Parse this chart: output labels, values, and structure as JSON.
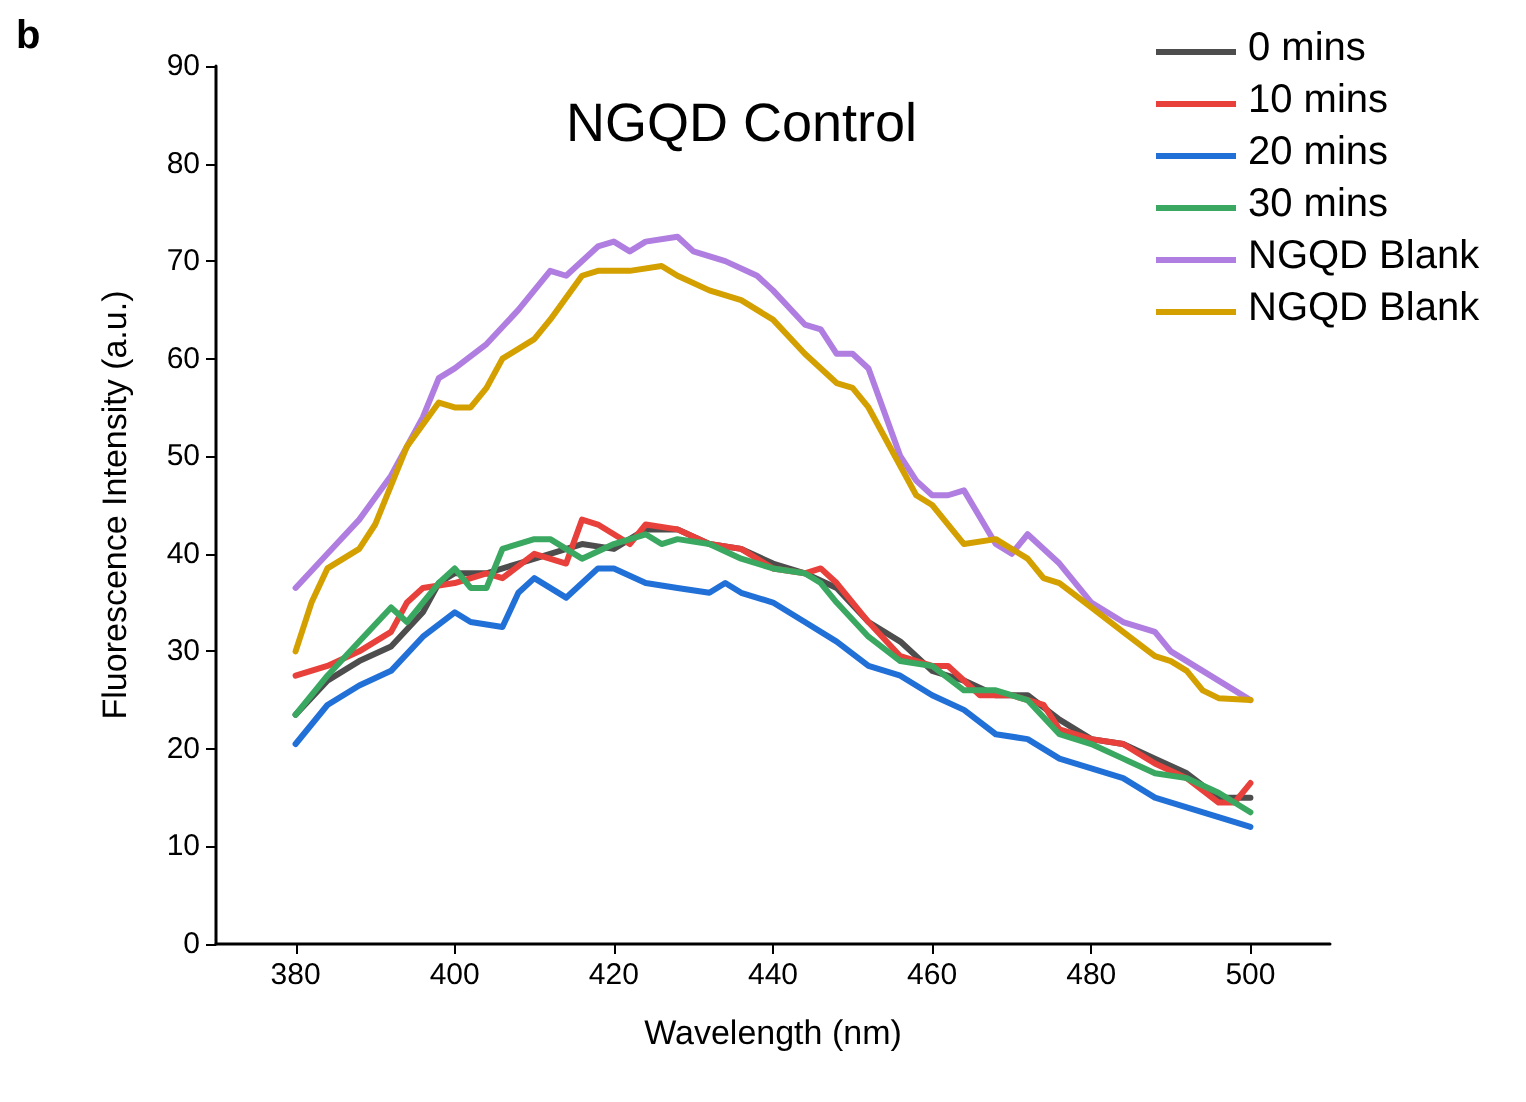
{
  "chart_data": {
    "type": "line",
    "title": "NGQD Control",
    "xlabel": "Wavelength (nm)",
    "ylabel": "Fluorescence Intensity (a.u.)",
    "annotations": [
      "b"
    ],
    "xlim": [
      370,
      510
    ],
    "xticks": [
      380,
      400,
      420,
      440,
      460,
      480,
      500
    ],
    "ylim": [
      0,
      90
    ],
    "yticks": [
      0,
      10,
      20,
      30,
      40,
      50,
      60,
      70,
      80,
      90
    ],
    "grid": false,
    "legend": "top right",
    "marker": "none",
    "line_style": "solid",
    "series": [
      {
        "name": "0 mins",
        "color": "#4d4d4d",
        "x": [
          380,
          384,
          388,
          392,
          396,
          398,
          400,
          404,
          408,
          412,
          416,
          420,
          424,
          428,
          432,
          436,
          440,
          444,
          448,
          452,
          456,
          460,
          464,
          468,
          472,
          476,
          480,
          484,
          488,
          492,
          496,
          500
        ],
        "values": [
          23.5,
          27,
          29,
          30.5,
          34,
          37,
          38,
          38,
          39,
          40,
          41,
          40.5,
          42.5,
          42.5,
          41,
          40.5,
          39,
          38,
          36.5,
          33,
          31,
          28,
          27,
          25.5,
          25.5,
          23,
          21,
          20.5,
          19,
          17.5,
          15,
          15
        ]
      },
      {
        "name": "10 mins",
        "color": "#e8403b",
        "x": [
          380,
          384,
          388,
          392,
          394,
          396,
          400,
          404,
          406,
          410,
          414,
          416,
          418,
          422,
          424,
          428,
          432,
          436,
          440,
          444,
          446,
          448,
          452,
          456,
          460,
          462,
          466,
          470,
          474,
          476,
          480,
          484,
          488,
          492,
          496,
          498,
          500
        ],
        "values": [
          27.5,
          28.5,
          30,
          32,
          35,
          36.5,
          37,
          38,
          37.5,
          40,
          39,
          43.5,
          43,
          41,
          43,
          42.5,
          41,
          40.5,
          38.5,
          38,
          38.5,
          37,
          33,
          29.5,
          28.5,
          28.5,
          25.5,
          25.5,
          24.5,
          22,
          21,
          20.5,
          18.5,
          17,
          14.5,
          14.5,
          16.5
        ]
      },
      {
        "name": "20 mins",
        "color": "#2070d8",
        "x": [
          380,
          384,
          388,
          392,
          396,
          400,
          402,
          406,
          408,
          410,
          414,
          418,
          420,
          424,
          428,
          432,
          434,
          436,
          440,
          444,
          448,
          452,
          456,
          460,
          464,
          468,
          472,
          476,
          480,
          484,
          488,
          492,
          496,
          500
        ],
        "values": [
          20.5,
          24.5,
          26.5,
          28,
          31.5,
          34,
          33,
          32.5,
          36,
          37.5,
          35.5,
          38.5,
          38.5,
          37,
          36.5,
          36,
          37,
          36,
          35,
          33,
          31,
          28.5,
          27.5,
          25.5,
          24,
          21.5,
          21,
          19,
          18,
          17,
          15,
          14,
          13,
          12
        ]
      },
      {
        "name": "30 mins",
        "color": "#3aa860",
        "x": [
          380,
          384,
          388,
          392,
          394,
          396,
          398,
          400,
          402,
          404,
          406,
          410,
          412,
          416,
          420,
          424,
          426,
          428,
          432,
          436,
          440,
          444,
          446,
          448,
          452,
          456,
          460,
          464,
          468,
          472,
          476,
          480,
          484,
          488,
          492,
          496,
          500
        ],
        "values": [
          23.5,
          27.5,
          31,
          34.5,
          33,
          35,
          37,
          38.5,
          36.5,
          36.5,
          40.5,
          41.5,
          41.5,
          39.5,
          41,
          42,
          41,
          41.5,
          41,
          39.5,
          38.5,
          38,
          37,
          35,
          31.5,
          29,
          28.5,
          26,
          26,
          25,
          21.5,
          20.5,
          19,
          17.5,
          17,
          15.5,
          13.5
        ]
      },
      {
        "name": "NGQD Blank",
        "color": "#b07ee0",
        "x": [
          380,
          384,
          388,
          392,
          396,
          398,
          400,
          404,
          408,
          412,
          414,
          418,
          420,
          422,
          424,
          428,
          430,
          434,
          438,
          440,
          444,
          446,
          448,
          450,
          452,
          456,
          458,
          460,
          462,
          464,
          468,
          470,
          472,
          476,
          480,
          484,
          488,
          490,
          494,
          498,
          500
        ],
        "values": [
          36.5,
          40,
          43.5,
          48,
          54,
          58,
          59,
          61.5,
          65,
          69,
          68.5,
          71.5,
          72,
          71,
          72,
          72.5,
          71,
          70,
          68.5,
          67,
          63.5,
          63,
          60.5,
          60.5,
          59,
          50,
          47.5,
          46,
          46,
          46.5,
          41,
          40,
          42,
          39,
          35,
          33,
          32,
          30,
          28,
          26,
          25
        ]
      },
      {
        "name": "NGQD Blank",
        "color": "#d4a000",
        "x": [
          380,
          382,
          384,
          388,
          390,
          394,
          398,
          400,
          402,
          404,
          406,
          410,
          412,
          416,
          418,
          420,
          422,
          426,
          428,
          432,
          436,
          440,
          444,
          448,
          450,
          452,
          456,
          458,
          460,
          464,
          468,
          472,
          474,
          476,
          480,
          484,
          488,
          490,
          492,
          494,
          496,
          500
        ],
        "values": [
          30,
          35,
          38.5,
          40.5,
          43,
          51,
          55.5,
          55,
          55,
          57,
          60,
          62,
          64,
          68.5,
          69,
          69,
          69,
          69.5,
          68.5,
          67,
          66,
          64,
          60.5,
          57.5,
          57,
          55,
          49,
          46,
          45,
          41,
          41.5,
          39.5,
          37.5,
          37,
          34.5,
          32,
          29.5,
          29,
          28,
          26,
          25.2,
          25
        ]
      }
    ]
  }
}
